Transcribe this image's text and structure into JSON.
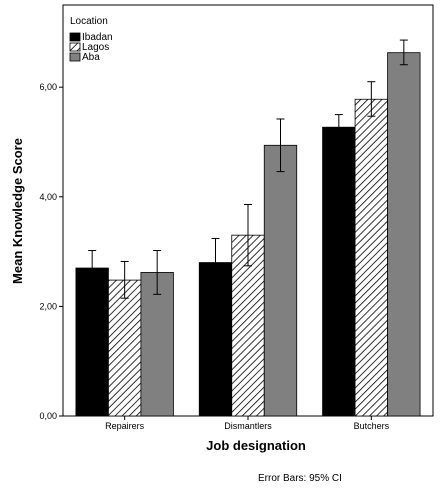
{
  "chart_data": {
    "type": "bar",
    "xlabel": "Job designation",
    "ylabel": "Mean Knowledge Score",
    "ylim": [
      0,
      7.5
    ],
    "yticks": [
      "0,00",
      "2,00",
      "4,00",
      "6,00"
    ],
    "yticks_values": [
      0,
      2,
      4,
      6
    ],
    "categories": [
      "Repairers",
      "Dismantlers",
      "Butchers"
    ],
    "legend_title": "Location",
    "legend_position": "top-left",
    "grid": false,
    "series": [
      {
        "name": "Ibadan",
        "values": [
          2.7,
          2.8,
          5.27
        ],
        "ci_low": [
          2.4,
          2.36,
          5.04
        ],
        "ci_high": [
          3.02,
          3.24,
          5.5
        ],
        "fill": "#000000",
        "pattern": "solid"
      },
      {
        "name": "Lagos",
        "values": [
          2.48,
          3.3,
          5.78
        ],
        "ci_low": [
          2.15,
          2.74,
          5.47
        ],
        "ci_high": [
          2.82,
          3.86,
          6.1
        ],
        "fill": "#ffffff",
        "pattern": "hatch"
      },
      {
        "name": "Aba",
        "values": [
          2.62,
          4.94,
          6.63
        ],
        "ci_low": [
          2.22,
          4.46,
          6.41
        ],
        "ci_high": [
          3.02,
          5.42,
          6.86
        ],
        "fill": "#808080",
        "pattern": "solid"
      }
    ],
    "footnote": "Error Bars: 95% CI"
  }
}
